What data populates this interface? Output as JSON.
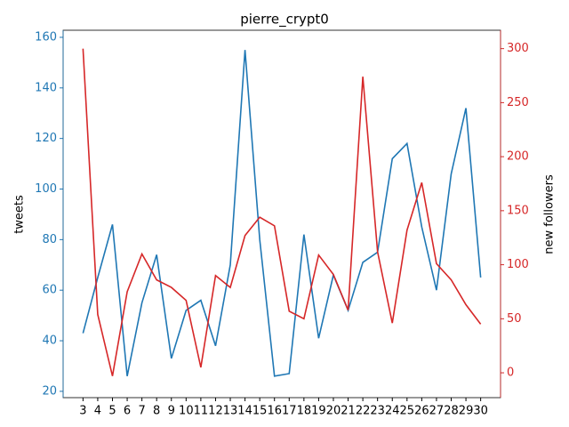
{
  "chart_data": {
    "type": "line",
    "title": "pierre_crypt0",
    "y_label": "tweets",
    "y2_label": "new followers",
    "x": [
      3,
      4,
      5,
      6,
      7,
      8,
      9,
      10,
      11,
      12,
      13,
      14,
      15,
      16,
      17,
      18,
      19,
      20,
      21,
      22,
      23,
      24,
      25,
      26,
      27,
      28,
      29,
      30
    ],
    "xlim": [
      1.65,
      31.35
    ],
    "ylim": [
      17.5,
      162.8
    ],
    "yticks": [
      20,
      40,
      60,
      80,
      100,
      120,
      140,
      160
    ],
    "y2lim": [
      -23,
      317
    ],
    "y2ticks": [
      0,
      50,
      100,
      150,
      200,
      250,
      300
    ],
    "series": [
      {
        "name": "tweets",
        "color": "#1f77b4",
        "values": [
          43,
          65,
          86,
          26,
          55,
          74,
          33,
          52,
          56,
          38,
          70,
          155,
          80,
          26,
          27,
          82,
          41,
          66,
          52,
          71,
          75,
          112,
          118,
          85,
          60,
          106,
          132,
          65
        ]
      },
      {
        "name": "new followers",
        "color": "#d62728",
        "axis": "y2",
        "values": [
          300,
          54,
          -3,
          75,
          110,
          86,
          79,
          67,
          5,
          90,
          79,
          127,
          144,
          136,
          57,
          50,
          109,
          91,
          58,
          274,
          112,
          46,
          132,
          176,
          101,
          86,
          63,
          45
        ]
      }
    ]
  }
}
